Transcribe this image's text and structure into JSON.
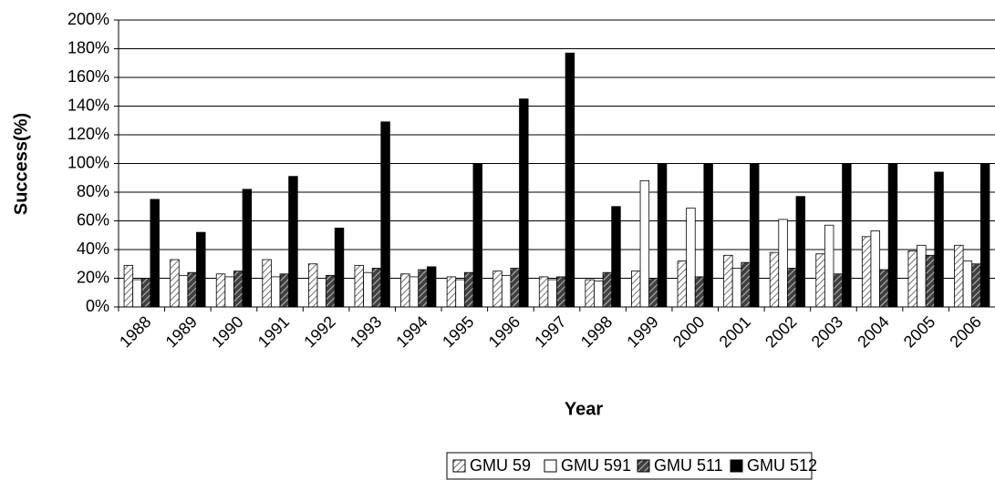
{
  "chart_data": {
    "type": "bar",
    "x_label": "Year",
    "y_label": "Success(%)",
    "categories": [
      "1988",
      "1989",
      "1990",
      "1991",
      "1992",
      "1993",
      "1994",
      "1995",
      "1996",
      "1997",
      "1998",
      "1999",
      "2000",
      "2001",
      "2002",
      "2003",
      "2004",
      "2005",
      "2006"
    ],
    "series": [
      {
        "name": "GMU 59",
        "color": "#ffffff",
        "hatch": "#707070",
        "values": [
          29,
          33,
          23,
          33,
          30,
          29,
          23,
          21,
          25,
          21,
          19,
          25,
          32,
          36,
          38,
          37,
          49,
          39,
          43
        ]
      },
      {
        "name": "GMU 591",
        "color": "#ffffff",
        "hatch": null,
        "values": [
          19,
          22,
          21,
          21,
          20,
          24,
          21,
          19,
          22,
          19,
          18,
          88,
          69,
          27,
          61,
          57,
          53,
          43,
          32
        ]
      },
      {
        "name": "GMU 511",
        "color": "#404040",
        "hatch": "#bbbbbb",
        "values": [
          20,
          24,
          25,
          23,
          22,
          27,
          26,
          24,
          27,
          21,
          24,
          20,
          21,
          31,
          27,
          23,
          26,
          36,
          30
        ]
      },
      {
        "name": "GMU 512",
        "color": "#000000",
        "hatch": null,
        "values": [
          75,
          52,
          82,
          91,
          55,
          129,
          28,
          100,
          145,
          177,
          70,
          100,
          100,
          100,
          77,
          100,
          100,
          94,
          100
        ]
      }
    ],
    "ylim": [
      0,
      200
    ],
    "yticks": [
      {
        "value": 0,
        "label": "0%"
      },
      {
        "value": 20,
        "label": "20%"
      },
      {
        "value": 40,
        "label": "40%"
      },
      {
        "value": 60,
        "label": "60%"
      },
      {
        "value": 80,
        "label": "80%"
      },
      {
        "value": 100,
        "label": "100%"
      },
      {
        "value": 120,
        "label": "120%"
      },
      {
        "value": 140,
        "label": "140%"
      },
      {
        "value": 160,
        "label": "160%"
      },
      {
        "value": 180,
        "label": "180%"
      },
      {
        "value": 200,
        "label": "200%"
      }
    ],
    "grid": true,
    "legend": "bottom"
  }
}
